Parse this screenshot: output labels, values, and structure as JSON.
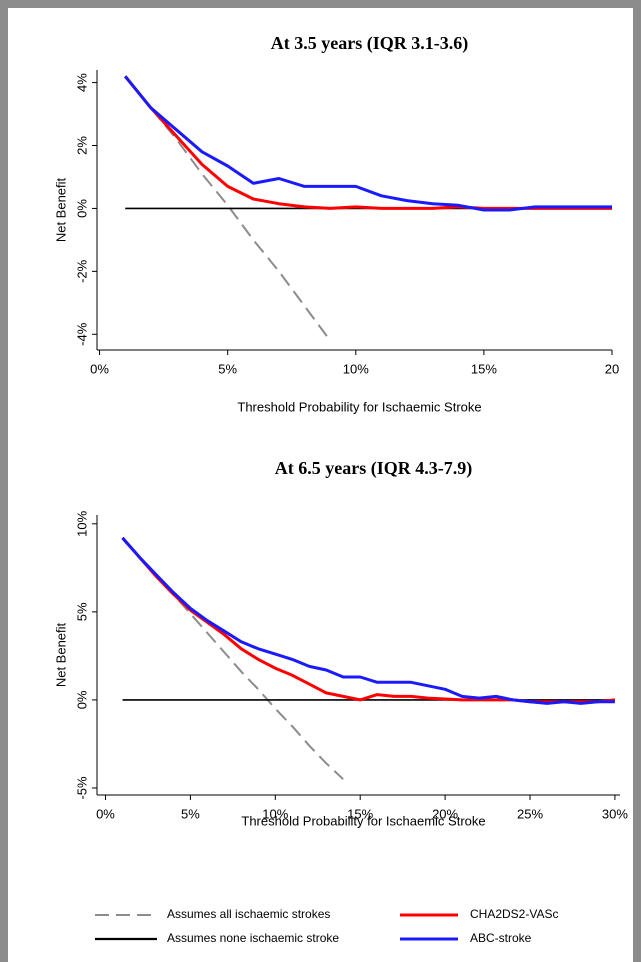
{
  "chart_data": [
    {
      "type": "line",
      "title": "At 3.5 years (IQR 3.1-3.6)",
      "xlabel": "Threshold Probability for Ischaemic Stroke",
      "ylabel": "Net Benefit",
      "x": [
        1,
        2,
        3,
        4,
        5,
        6,
        7,
        8,
        9,
        10,
        11,
        12,
        13,
        14,
        15,
        16,
        17,
        18,
        19,
        20
      ],
      "xlim": [
        -0.1,
        20
      ],
      "ylim": [
        -4.5,
        4.4
      ],
      "xticks": [
        {
          "value": 0,
          "label": "0%"
        },
        {
          "value": 5,
          "label": "5%"
        },
        {
          "value": 10,
          "label": "10%"
        },
        {
          "value": 15,
          "label": "15%"
        },
        20
      ],
      "yticks": [
        {
          "value": -4,
          "label": "-4%"
        },
        {
          "value": -2,
          "label": "-2%"
        },
        {
          "value": 0,
          "label": "0%"
        },
        {
          "value": 2,
          "label": "2%"
        },
        {
          "value": 4,
          "label": "4%"
        }
      ],
      "series": [
        {
          "name": "Assumes all ischaemic strokes",
          "color": "#8c8c8c",
          "style": "dashed",
          "values": [
            4.2,
            3.2,
            2.2,
            1.1,
            0.1,
            -1.0,
            -2.0,
            -3.1,
            -4.2,
            null,
            null,
            null,
            null,
            null,
            null,
            null,
            null,
            null,
            null,
            null
          ]
        },
        {
          "name": "Assumes none ischaemic stroke",
          "color": "#000000",
          "style": "solid",
          "values": [
            0,
            0,
            0,
            0,
            0,
            0,
            0,
            0,
            0,
            0,
            0,
            0,
            0,
            0,
            0,
            0,
            0,
            0,
            0,
            0
          ]
        },
        {
          "name": "CHA2DS2-VASc",
          "color": "#ff0000",
          "style": "thick",
          "values": [
            4.2,
            3.2,
            2.3,
            1.4,
            0.7,
            0.3,
            0.15,
            0.05,
            0,
            0.05,
            0,
            0,
            0,
            0.05,
            0,
            0,
            0,
            0,
            0,
            0
          ]
        },
        {
          "name": "ABC-stroke",
          "color": "#1a1aff",
          "style": "thick",
          "values": [
            4.2,
            3.2,
            2.5,
            1.8,
            1.35,
            0.8,
            0.95,
            0.7,
            0.7,
            0.7,
            0.4,
            0.25,
            0.15,
            0.1,
            -0.05,
            -0.05,
            0.05,
            0.05,
            0.05,
            0.05
          ]
        }
      ]
    },
    {
      "type": "line",
      "title": "At 6.5 years (IQR 4.3-7.9)",
      "xlabel": "Threshold Probability for Ischaemic Stroke",
      "ylabel": "Net Benefit",
      "x": [
        1,
        2,
        3,
        4,
        5,
        6,
        7,
        8,
        9,
        10,
        11,
        12,
        13,
        14,
        15,
        16,
        17,
        18,
        19,
        20,
        21,
        22,
        23,
        24,
        25,
        26,
        27,
        28,
        29,
        30
      ],
      "xlim": [
        -0.5,
        30.3
      ],
      "ylim": [
        -5.4,
        10.5
      ],
      "xticks": [
        {
          "value": 0,
          "label": "0%"
        },
        {
          "value": 5,
          "label": "5%"
        },
        {
          "value": 10,
          "label": "10%"
        },
        {
          "value": 15,
          "label": "15%"
        },
        {
          "value": 20,
          "label": "20%"
        },
        {
          "value": 25,
          "label": "25%"
        },
        {
          "value": 30,
          "label": "30%"
        }
      ],
      "yticks": [
        {
          "value": -5,
          "label": "-5%"
        },
        {
          "value": 0,
          "label": "0%"
        },
        {
          "value": 5,
          "label": "5%"
        },
        {
          "value": 10,
          "label": "10%"
        }
      ],
      "series": [
        {
          "name": "Assumes all ischaemic strokes",
          "color": "#8c8c8c",
          "style": "dashed",
          "values": [
            9.2,
            8.1,
            7.1,
            6.0,
            4.9,
            3.8,
            2.7,
            1.6,
            0.6,
            -0.5,
            -1.5,
            -2.6,
            -3.6,
            -4.5,
            null,
            null,
            null,
            null,
            null,
            null,
            null,
            null,
            null,
            null,
            null,
            null,
            null,
            null,
            null,
            null
          ]
        },
        {
          "name": "Assumes none ischaemic stroke",
          "color": "#000000",
          "style": "solid",
          "values": [
            0,
            0,
            0,
            0,
            0,
            0,
            0,
            0,
            0,
            0,
            0,
            0,
            0,
            0,
            0,
            0,
            0,
            0,
            0,
            0,
            0,
            0,
            0,
            0,
            0,
            0,
            0,
            0,
            0,
            0
          ]
        },
        {
          "name": "CHA2DS2-VASc",
          "color": "#ff0000",
          "style": "thick",
          "values": [
            9.2,
            8.1,
            7.0,
            6.0,
            5.1,
            4.4,
            3.7,
            2.9,
            2.3,
            1.8,
            1.4,
            0.9,
            0.4,
            0.2,
            0.0,
            0.3,
            0.2,
            0.2,
            0.1,
            0.05,
            0,
            0,
            0,
            0,
            -0.1,
            -0.1,
            -0.1,
            -0.1,
            -0.1,
            0
          ]
        },
        {
          "name": "ABC-stroke",
          "color": "#1a1aff",
          "style": "thick",
          "values": [
            9.2,
            8.1,
            7.1,
            6.1,
            5.2,
            4.5,
            3.9,
            3.3,
            2.9,
            2.6,
            2.3,
            1.9,
            1.7,
            1.3,
            1.3,
            1.0,
            1.0,
            1.0,
            0.8,
            0.6,
            0.2,
            0.1,
            0.2,
            0,
            -0.1,
            -0.2,
            -0.1,
            -0.2,
            -0.1,
            -0.1
          ]
        }
      ]
    }
  ]
}
